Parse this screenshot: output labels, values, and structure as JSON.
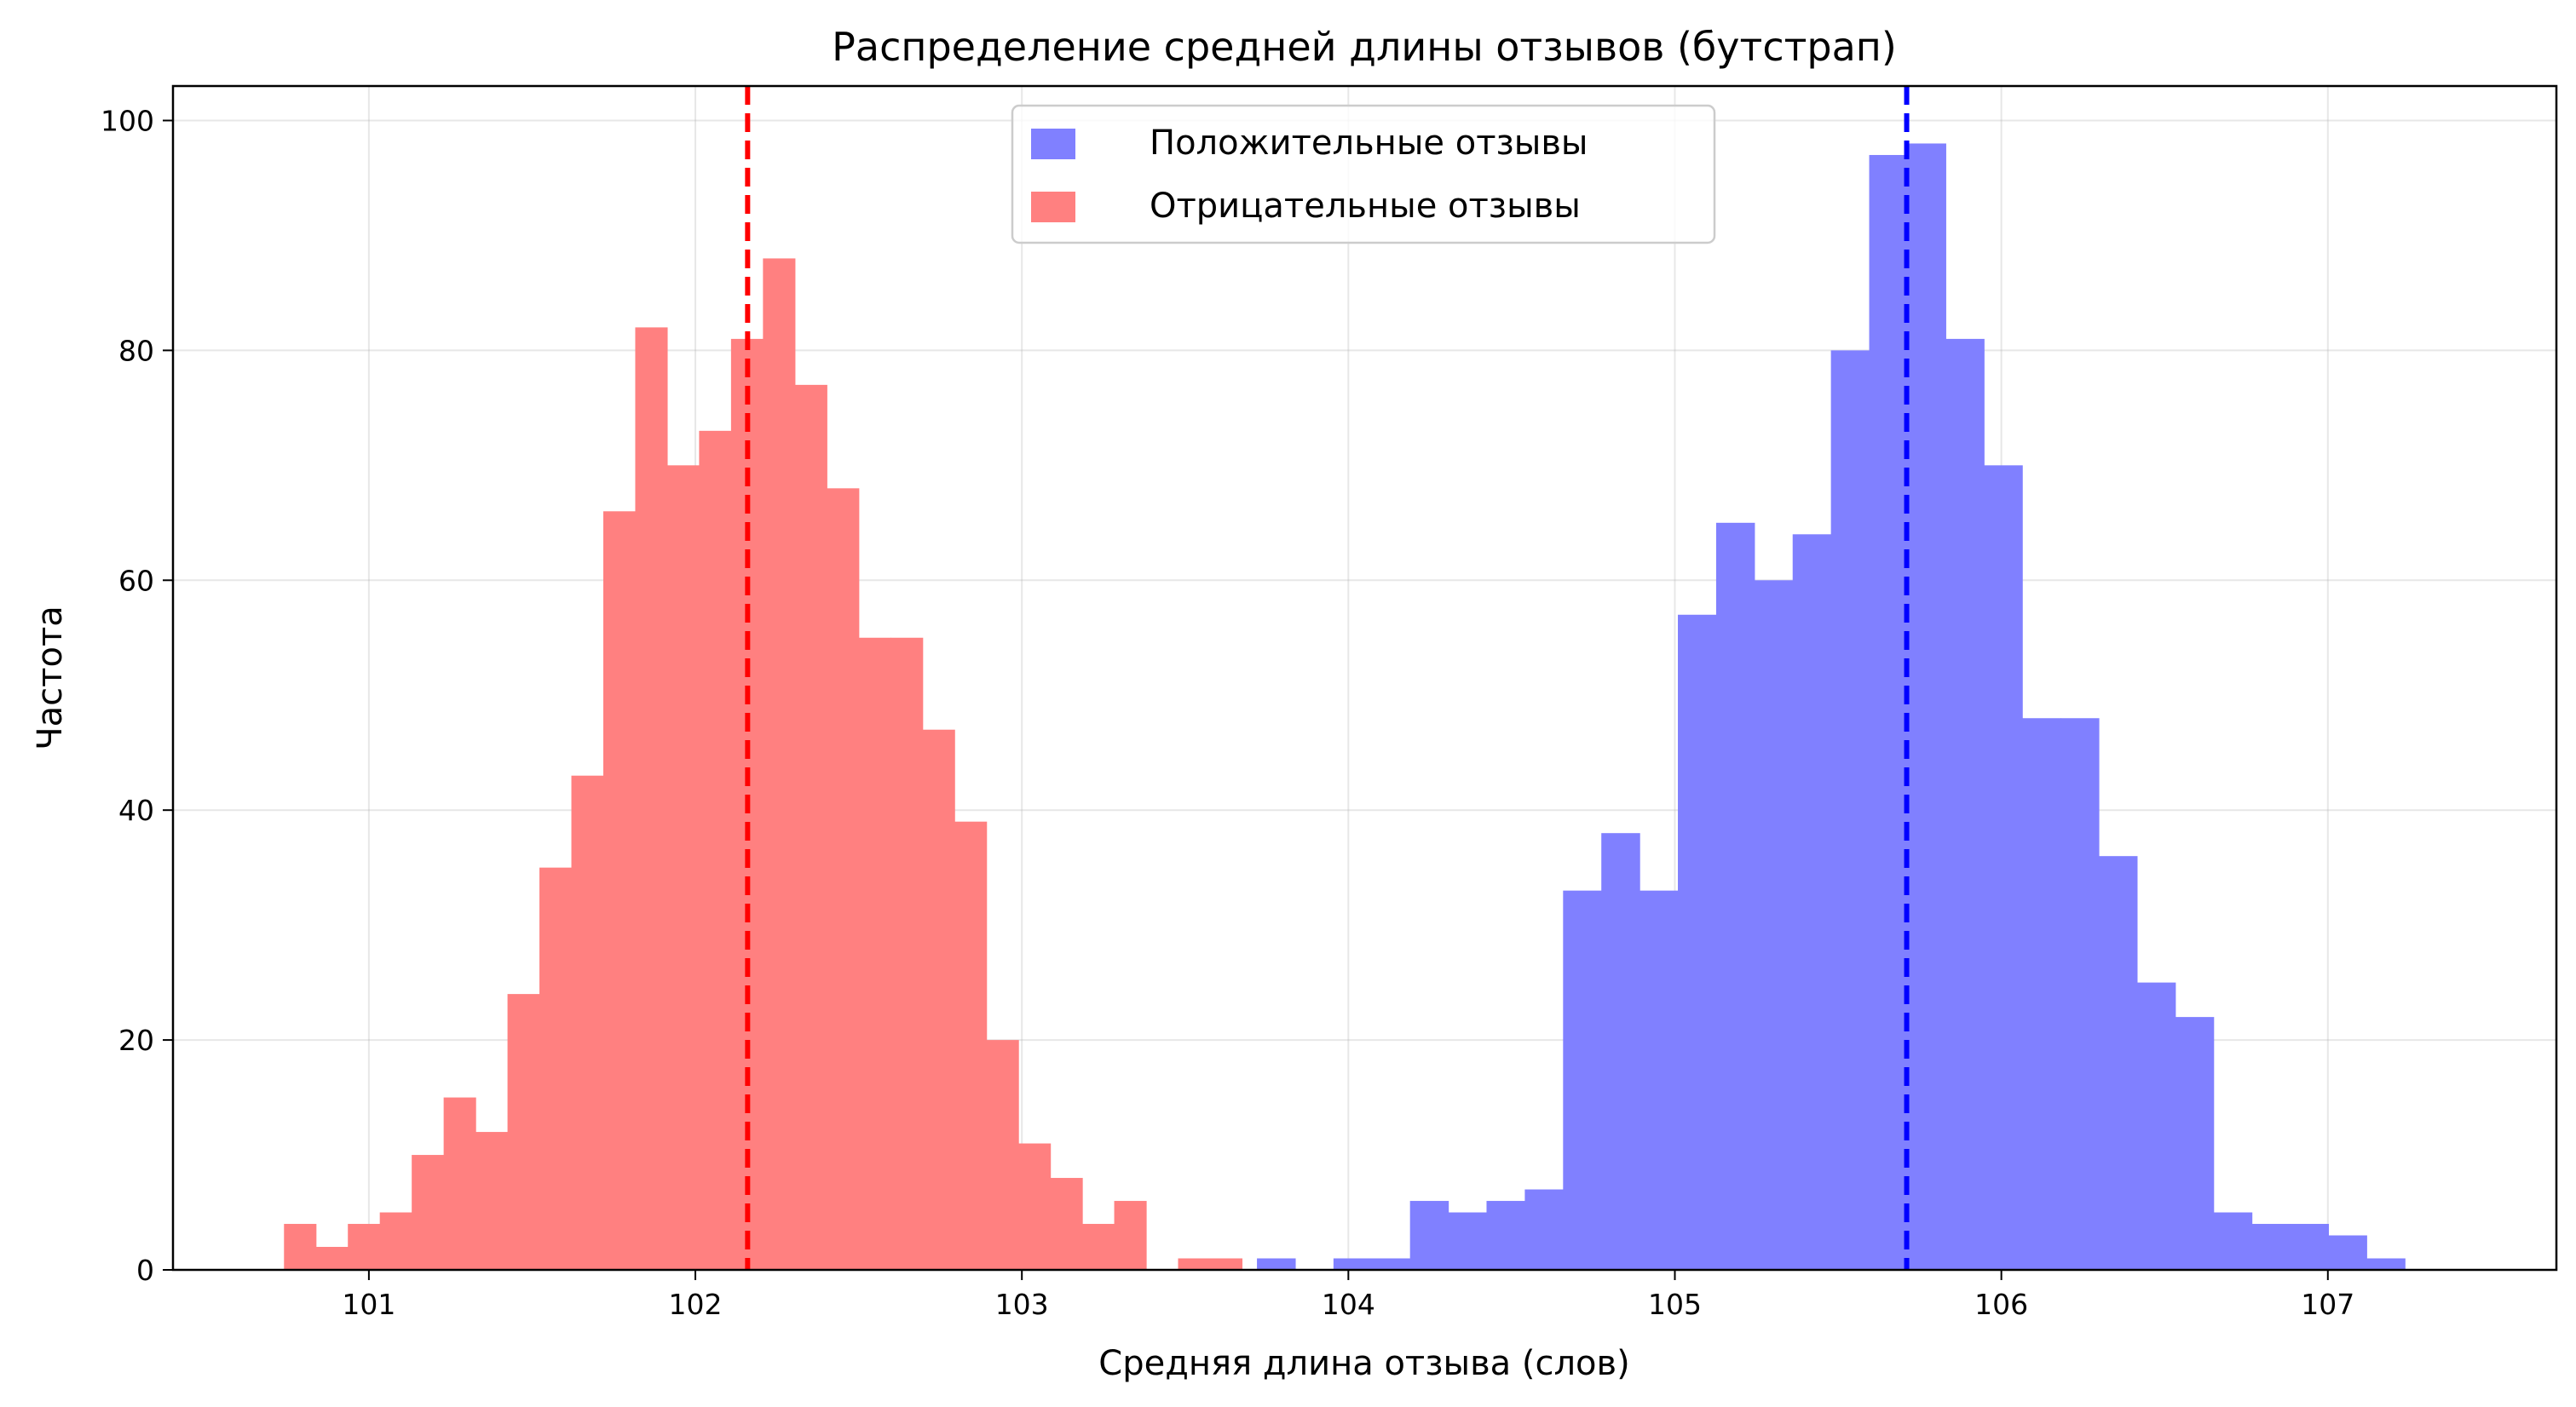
{
  "chart_data": {
    "type": "bar",
    "title": "Распределение средней длины отзывов (бутстрап)",
    "xlabel": "Средняя длина отзыва (слов)",
    "ylabel": "Частота",
    "xlim": [
      100.4,
      107.7
    ],
    "ylim": [
      0,
      103
    ],
    "xticks": [
      101,
      102,
      103,
      104,
      105,
      106,
      107
    ],
    "yticks": [
      0,
      20,
      40,
      60,
      80,
      100
    ],
    "grid": true,
    "legend_position": "top-center",
    "series": [
      {
        "name": "Положительные отзывы",
        "color": "#8080ff",
        "bin_start": 103.72,
        "bin_width": 0.1172,
        "counts": [
          1,
          0,
          1,
          1,
          6,
          5,
          6,
          7,
          33,
          38,
          33,
          57,
          65,
          60,
          64,
          80,
          97,
          98,
          81,
          70,
          48,
          48,
          36,
          25,
          22,
          5,
          4,
          4,
          3,
          1
        ],
        "mean": 105.71,
        "mean_line_color": "#0000ff"
      },
      {
        "name": "Отрицательные отзывы",
        "color": "#ff8080",
        "bin_start": 100.74,
        "bin_width": 0.0978,
        "counts": [
          4,
          2,
          4,
          5,
          10,
          15,
          12,
          24,
          35,
          43,
          66,
          82,
          70,
          73,
          81,
          88,
          77,
          68,
          55,
          55,
          47,
          39,
          20,
          11,
          8,
          4,
          6,
          0,
          1,
          1
        ],
        "mean": 102.16,
        "mean_line_color": "#ff0000"
      }
    ]
  }
}
